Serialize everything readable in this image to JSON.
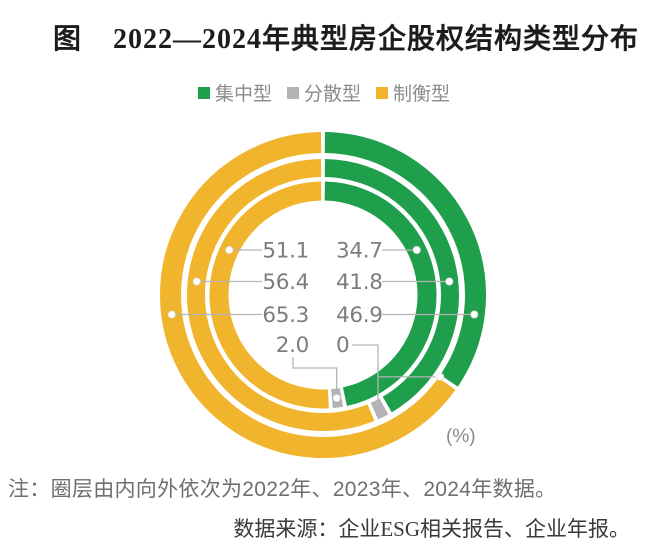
{
  "title": {
    "prefix": "图",
    "text": "2022—2024年典型房企股权结构类型分布"
  },
  "legend": [
    {
      "label": "集中型",
      "color": "#1f9e4c"
    },
    {
      "label": "分散型",
      "color": "#b3b3b5"
    },
    {
      "label": "制衡型",
      "color": "#f0b42d"
    }
  ],
  "chart_data": {
    "type": "donut",
    "subtype": "three-concentric-rings",
    "unit_label": "(%)",
    "rings_inner_to_outer": [
      "2022",
      "2023",
      "2024"
    ],
    "categories": [
      "集中型",
      "分散型",
      "制衡型"
    ],
    "series": [
      {
        "name": "集中型",
        "color": "#1f9e4c",
        "values": [
          46.9,
          41.8,
          34.7
        ]
      },
      {
        "name": "分散型",
        "color": "#b3b3b5",
        "values": [
          2.0,
          1.8,
          0
        ]
      },
      {
        "name": "制衡型",
        "color": "#f0b42d",
        "values": [
          51.1,
          56.4,
          65.3
        ]
      }
    ],
    "value_labels": {
      "rows": [
        {
          "left": "51.1",
          "right": "34.7"
        },
        {
          "left": "56.4",
          "right": "41.8"
        },
        {
          "left": "65.3",
          "right": "46.9"
        },
        {
          "left": "2.0",
          "right": "0"
        }
      ]
    },
    "legend_position": "top",
    "start_angle_deg": 0,
    "direction": "clockwise"
  },
  "note": "注：圈层由内向外依次为2022年、2023年、2024年数据。",
  "source": "数据来源：企业ESG相关报告、企业年报。"
}
